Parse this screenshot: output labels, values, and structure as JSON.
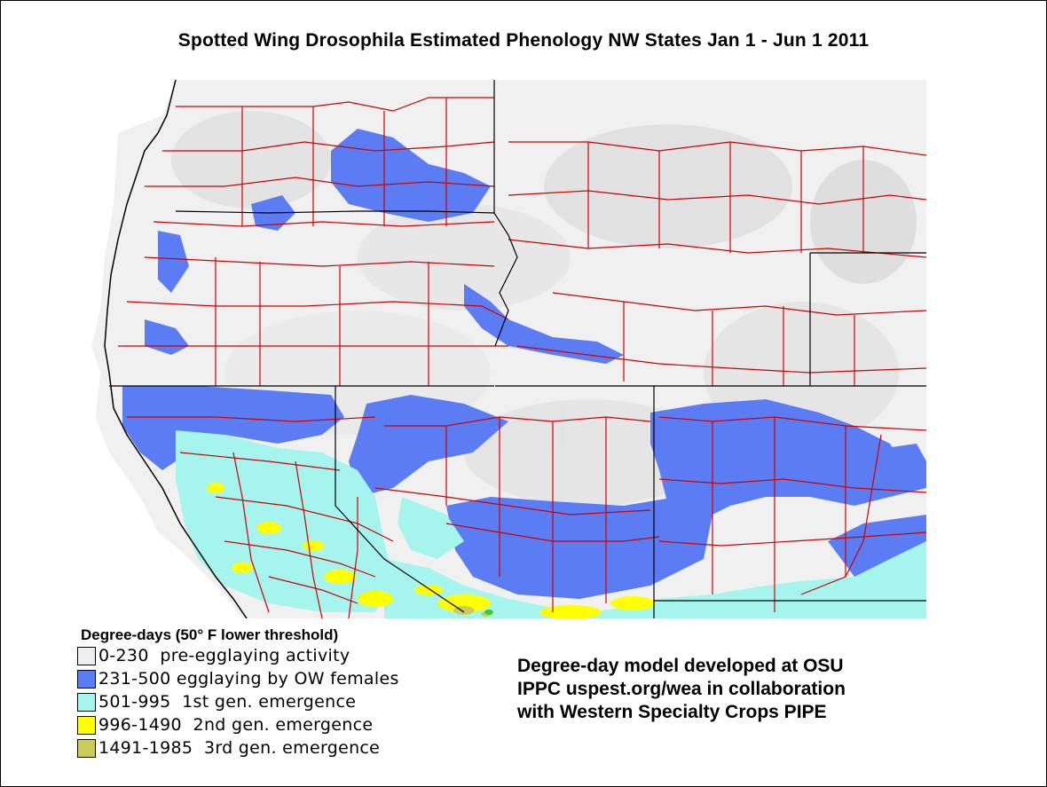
{
  "title": "Spotted Wing Drosophila Estimated Phenology NW States Jan 1 - Jun 1 2011",
  "legend": {
    "title": "Degree-days (50° F lower threshold)",
    "items": [
      {
        "range": "0-230",
        "label": "0-230  pre-egglaying activity",
        "color": "#eeeeee"
      },
      {
        "range": "231-500",
        "label": "231-500 egglaying by OW females",
        "color": "#5b7cf2"
      },
      {
        "range": "501-995",
        "label": "501-995  1st gen. emergence",
        "color": "#a6f4ee"
      },
      {
        "range": "996-1490",
        "label": "996-1490  2nd gen. emergence",
        "color": "#ffff00"
      },
      {
        "range": "1491-1985",
        "label": "1491-1985  3rd gen. emergence",
        "color": "#cccc5a"
      }
    ]
  },
  "credit": {
    "line1": "Degree-day model developed at OSU",
    "line2": "IPPC uspest.org/wea in collaboration",
    "line3": "with Western Specialty Crops PIPE"
  },
  "colors": {
    "state_border": "#000000",
    "county_border": "#d00000",
    "background_land": "#f2f2f2"
  }
}
